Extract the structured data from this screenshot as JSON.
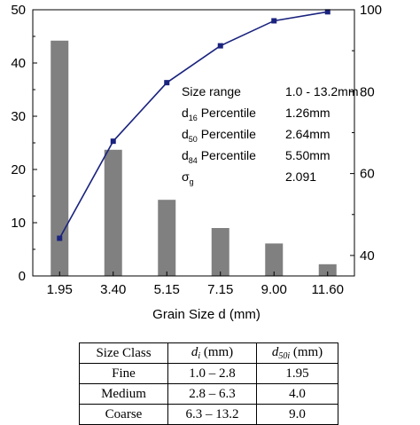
{
  "chart_data": {
    "type": "bar+line",
    "xlabel": "Grain Size d (mm)",
    "categories": [
      "1.95",
      "3.40",
      "5.15",
      "7.15",
      "9.00",
      "11.60"
    ],
    "bars": {
      "values": [
        44.2,
        23.7,
        14.3,
        9.0,
        6.1,
        2.2
      ],
      "color": "#808080"
    },
    "line": {
      "values": [
        44.2,
        67.9,
        82.2,
        91.2,
        97.3,
        99.5
      ],
      "color": "#1a237e",
      "marker": "square"
    },
    "y_left": {
      "min": 0,
      "max": 50,
      "ticks": [
        0,
        10,
        20,
        30,
        40,
        50
      ]
    },
    "y_right": {
      "min": 35,
      "max": 100,
      "ticks": [
        40,
        60,
        80,
        100
      ]
    },
    "annotation": [
      {
        "label": "Size range",
        "sub": "",
        "suffix": "",
        "value": "1.0 - 13.2mm"
      },
      {
        "label": "d",
        "sub": "16",
        "suffix": " Percentile",
        "value": "1.26mm"
      },
      {
        "label": "d",
        "sub": "50",
        "suffix": " Percentile",
        "value": "2.64mm"
      },
      {
        "label": "d",
        "sub": "84",
        "suffix": " Percentile",
        "value": "5.50mm"
      },
      {
        "label": "σ",
        "sub": "g",
        "suffix": "",
        "value": "2.091"
      }
    ]
  },
  "table": {
    "headers": {
      "size_class": "Size Class",
      "di_var": "d",
      "di_sub": "i",
      "di_unit": " (mm)",
      "d50_var": "d",
      "d50_sub": "50i",
      "d50_unit": " (mm)"
    },
    "rows": [
      {
        "class": "Fine",
        "range": "1.0 – 2.8",
        "d50": "1.95"
      },
      {
        "class": "Medium",
        "range": "2.8 – 6.3",
        "d50": "4.0"
      },
      {
        "class": "Coarse",
        "range": "6.3 – 13.2",
        "d50": "9.0"
      }
    ]
  }
}
